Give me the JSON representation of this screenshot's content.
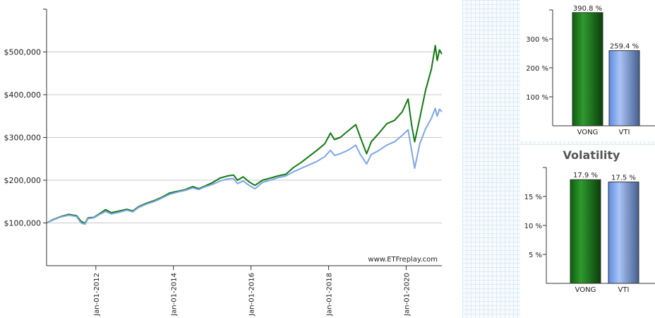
{
  "chart_data": [
    {
      "type": "line",
      "title": "",
      "xlabel": "",
      "ylabel": "",
      "watermark": "www.ETFreplay.com",
      "ylim": [
        0,
        600000
      ],
      "y_ticks": [
        100000,
        200000,
        300000,
        400000,
        500000
      ],
      "y_tick_labels": [
        "$100,000",
        "$200,000",
        "$300,000",
        "$400,000",
        "$500,000"
      ],
      "x_tick_labels": [
        "Jan-01-2012",
        "Jan-01-2014",
        "Jan-01-2016",
        "Jan-01-2018",
        "Jan-01-2020"
      ],
      "x_ticks": [
        2012.0,
        2014.0,
        2016.0,
        2018.0,
        2020.0
      ],
      "xlim": [
        2010.73,
        2020.92
      ],
      "grid": true,
      "series": [
        {
          "color": "#117a11",
          "points": [
            [
              2010.73,
              100000
            ],
            [
              2010.9,
              108000
            ],
            [
              2011.1,
              115000
            ],
            [
              2011.3,
              120000
            ],
            [
              2011.5,
              117000
            ],
            [
              2011.62,
              104000
            ],
            [
              2011.72,
              99000
            ],
            [
              2011.8,
              112000
            ],
            [
              2011.95,
              113000
            ],
            [
              2012.1,
              122000
            ],
            [
              2012.25,
              131000
            ],
            [
              2012.4,
              124000
            ],
            [
              2012.6,
              128000
            ],
            [
              2012.8,
              132000
            ],
            [
              2012.95,
              128000
            ],
            [
              2013.1,
              138000
            ],
            [
              2013.3,
              146000
            ],
            [
              2013.5,
              152000
            ],
            [
              2013.7,
              160000
            ],
            [
              2013.9,
              170000
            ],
            [
              2014.1,
              174000
            ],
            [
              2014.3,
              178000
            ],
            [
              2014.5,
              185000
            ],
            [
              2014.65,
              180000
            ],
            [
              2014.8,
              186000
            ],
            [
              2015.0,
              194000
            ],
            [
              2015.2,
              205000
            ],
            [
              2015.4,
              210000
            ],
            [
              2015.55,
              212000
            ],
            [
              2015.65,
              200000
            ],
            [
              2015.8,
              208000
            ],
            [
              2015.95,
              196000
            ],
            [
              2016.1,
              188000
            ],
            [
              2016.3,
              200000
            ],
            [
              2016.5,
              205000
            ],
            [
              2016.7,
              210000
            ],
            [
              2016.9,
              214000
            ],
            [
              2017.1,
              230000
            ],
            [
              2017.3,
              242000
            ],
            [
              2017.5,
              256000
            ],
            [
              2017.7,
              270000
            ],
            [
              2017.9,
              285000
            ],
            [
              2018.05,
              310000
            ],
            [
              2018.15,
              295000
            ],
            [
              2018.3,
              300000
            ],
            [
              2018.5,
              315000
            ],
            [
              2018.7,
              330000
            ],
            [
              2018.82,
              300000
            ],
            [
              2018.98,
              262000
            ],
            [
              2019.1,
              290000
            ],
            [
              2019.3,
              310000
            ],
            [
              2019.5,
              332000
            ],
            [
              2019.7,
              340000
            ],
            [
              2019.9,
              360000
            ],
            [
              2020.05,
              390000
            ],
            [
              2020.14,
              330000
            ],
            [
              2020.22,
              290000
            ],
            [
              2020.35,
              345000
            ],
            [
              2020.5,
              410000
            ],
            [
              2020.65,
              460000
            ],
            [
              2020.75,
              515000
            ],
            [
              2020.8,
              480000
            ],
            [
              2020.86,
              505000
            ],
            [
              2020.92,
              495000
            ]
          ]
        },
        {
          "color": "#7ea6e8",
          "points": [
            [
              2010.73,
              100000
            ],
            [
              2010.9,
              107000
            ],
            [
              2011.1,
              114000
            ],
            [
              2011.3,
              118000
            ],
            [
              2011.5,
              115000
            ],
            [
              2011.62,
              100000
            ],
            [
              2011.72,
              97000
            ],
            [
              2011.8,
              110000
            ],
            [
              2011.95,
              112000
            ],
            [
              2012.1,
              120000
            ],
            [
              2012.25,
              127000
            ],
            [
              2012.4,
              121000
            ],
            [
              2012.6,
              125000
            ],
            [
              2012.8,
              130000
            ],
            [
              2012.95,
              126000
            ],
            [
              2013.1,
              136000
            ],
            [
              2013.3,
              144000
            ],
            [
              2013.5,
              150000
            ],
            [
              2013.7,
              158000
            ],
            [
              2013.9,
              167000
            ],
            [
              2014.1,
              172000
            ],
            [
              2014.3,
              176000
            ],
            [
              2014.5,
              182000
            ],
            [
              2014.65,
              178000
            ],
            [
              2014.8,
              184000
            ],
            [
              2015.0,
              190000
            ],
            [
              2015.2,
              198000
            ],
            [
              2015.4,
              203000
            ],
            [
              2015.55,
              204000
            ],
            [
              2015.65,
              192000
            ],
            [
              2015.8,
              198000
            ],
            [
              2015.95,
              188000
            ],
            [
              2016.1,
              180000
            ],
            [
              2016.3,
              195000
            ],
            [
              2016.5,
              200000
            ],
            [
              2016.7,
              206000
            ],
            [
              2016.9,
              210000
            ],
            [
              2017.1,
              220000
            ],
            [
              2017.3,
              228000
            ],
            [
              2017.5,
              236000
            ],
            [
              2017.7,
              244000
            ],
            [
              2017.9,
              255000
            ],
            [
              2018.05,
              270000
            ],
            [
              2018.15,
              258000
            ],
            [
              2018.3,
              262000
            ],
            [
              2018.5,
              270000
            ],
            [
              2018.7,
              282000
            ],
            [
              2018.82,
              260000
            ],
            [
              2018.98,
              238000
            ],
            [
              2019.1,
              260000
            ],
            [
              2019.3,
              270000
            ],
            [
              2019.5,
              282000
            ],
            [
              2019.7,
              290000
            ],
            [
              2019.9,
              305000
            ],
            [
              2020.05,
              318000
            ],
            [
              2020.14,
              270000
            ],
            [
              2020.22,
              228000
            ],
            [
              2020.35,
              285000
            ],
            [
              2020.5,
              320000
            ],
            [
              2020.65,
              345000
            ],
            [
              2020.75,
              368000
            ],
            [
              2020.8,
              350000
            ],
            [
              2020.86,
              366000
            ],
            [
              2020.92,
              360000
            ]
          ]
        }
      ]
    },
    {
      "type": "bar",
      "title": "",
      "categories": [
        "VONG",
        "VTI"
      ],
      "values": [
        390.8,
        259.4
      ],
      "value_labels": [
        "390.8 %",
        "259.4 %"
      ],
      "ylim": [
        0,
        400
      ],
      "y_ticks": [
        100,
        200,
        300
      ],
      "y_tick_labels": [
        "100 %",
        "200 %",
        "300 %"
      ],
      "colors": [
        "#117a11",
        "#7ea6e8"
      ]
    },
    {
      "type": "bar",
      "title": "Volatility",
      "categories": [
        "VONG",
        "VTI"
      ],
      "values": [
        17.9,
        17.5
      ],
      "value_labels": [
        "17.9 %",
        "17.5 %"
      ],
      "ylim": [
        0,
        20
      ],
      "y_ticks": [
        5,
        10,
        15
      ],
      "y_tick_labels": [
        "5 %",
        "10 %",
        "15 %"
      ],
      "colors": [
        "#117a11",
        "#7ea6e8"
      ]
    }
  ]
}
